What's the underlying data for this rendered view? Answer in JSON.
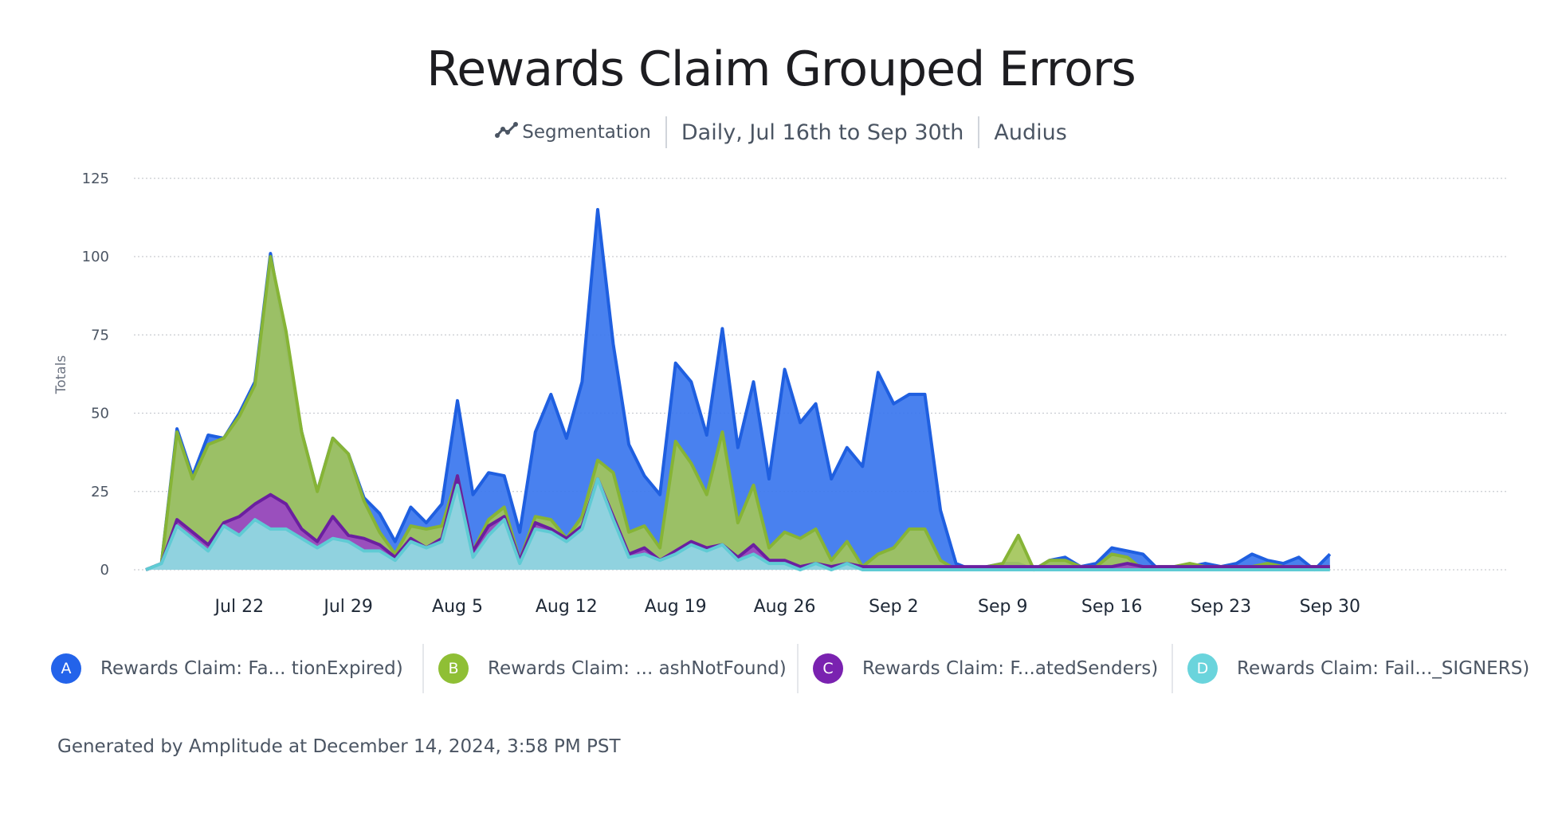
{
  "header": {
    "title": "Rewards Claim Grouped Errors",
    "segmentation_label": "Segmentation",
    "date_range": "Daily, Jul 16th to Sep 30th",
    "project": "Audius"
  },
  "footer": {
    "text": "Generated by Amplitude at December 14, 2024, 3:58 PM PST"
  },
  "chart_data": {
    "type": "area",
    "stacked": true,
    "title": "Rewards Claim Grouped Errors",
    "ylabel": "Totals",
    "xlabel": "",
    "ylim": [
      0,
      125
    ],
    "yticks": [
      0,
      25,
      50,
      75,
      100,
      125
    ],
    "grid": true,
    "start_date": "Jul 16",
    "x_ticks": [
      {
        "day": 6,
        "label": "Jul 22"
      },
      {
        "day": 13,
        "label": "Jul 29"
      },
      {
        "day": 20,
        "label": "Aug 5"
      },
      {
        "day": 27,
        "label": "Aug 12"
      },
      {
        "day": 34,
        "label": "Aug 19"
      },
      {
        "day": 41,
        "label": "Aug 26"
      },
      {
        "day": 48,
        "label": "Sep 2"
      },
      {
        "day": 55,
        "label": "Sep 9"
      },
      {
        "day": 62,
        "label": "Sep 16"
      },
      {
        "day": 69,
        "label": "Sep 23"
      },
      {
        "day": 76,
        "label": "Sep 30"
      }
    ],
    "cumulative_totals": {
      "D": [
        0,
        2,
        14,
        10,
        6,
        14,
        11,
        16,
        13,
        13,
        10,
        7,
        10,
        9,
        6,
        6,
        3,
        9,
        7,
        9,
        27,
        4,
        11,
        16,
        2,
        13,
        12,
        9,
        13,
        29,
        16,
        4,
        5,
        3,
        5,
        8,
        6,
        8,
        3,
        5,
        2,
        2,
        0,
        2,
        0,
        2,
        0,
        0,
        0,
        0,
        0,
        0,
        0,
        0,
        0,
        0,
        0,
        0,
        0,
        0,
        0,
        0,
        0,
        0,
        0,
        0,
        0,
        0,
        0,
        0,
        0,
        0,
        0,
        0,
        0,
        0,
        0
      ],
      "C": [
        0,
        2,
        16,
        12,
        8,
        15,
        17,
        21,
        24,
        21,
        13,
        9,
        17,
        11,
        10,
        8,
        4,
        10,
        7,
        10,
        30,
        6,
        14,
        17,
        3,
        15,
        13,
        10,
        14,
        29,
        17,
        5,
        7,
        3,
        6,
        9,
        7,
        8,
        4,
        8,
        3,
        3,
        1,
        2,
        1,
        2,
        1,
        1,
        1,
        1,
        1,
        1,
        1,
        1,
        1,
        1,
        1,
        1,
        1,
        1,
        1,
        1,
        1,
        2,
        1,
        1,
        1,
        1,
        1,
        1,
        1,
        1,
        1,
        1,
        1,
        1,
        1
      ],
      "B": [
        0,
        2,
        44,
        29,
        40,
        42,
        49,
        59,
        100,
        76,
        44,
        25,
        42,
        37,
        22,
        12,
        5,
        14,
        13,
        14,
        30,
        6,
        16,
        20,
        3,
        17,
        16,
        10,
        17,
        35,
        31,
        12,
        14,
        7,
        41,
        34,
        24,
        44,
        15,
        27,
        7,
        12,
        10,
        13,
        3,
        9,
        1,
        5,
        7,
        13,
        13,
        3,
        0,
        0,
        1,
        2,
        11,
        0,
        3,
        3,
        1,
        1,
        5,
        4,
        0,
        1,
        1,
        2,
        1,
        1,
        1,
        1,
        2,
        1,
        1,
        1,
        1
      ],
      "A": [
        0,
        2,
        45,
        30,
        43,
        42,
        50,
        60,
        101,
        72,
        44,
        25,
        42,
        37,
        23,
        18,
        9,
        20,
        15,
        21,
        54,
        24,
        31,
        30,
        12,
        44,
        56,
        42,
        60,
        115,
        72,
        40,
        30,
        24,
        66,
        60,
        43,
        77,
        39,
        60,
        29,
        64,
        47,
        53,
        29,
        39,
        33,
        63,
        53,
        56,
        56,
        19,
        2,
        0,
        1,
        2,
        2,
        0,
        3,
        4,
        1,
        2,
        7,
        6,
        5,
        0,
        1,
        1,
        2,
        1,
        2,
        5,
        3,
        2,
        4,
        0,
        5
      ]
    },
    "series": [
      {
        "key": "A",
        "name": "Rewards Claim: Fa... tionExpired)",
        "color": "#3a76ee",
        "line": "#1f5fe0"
      },
      {
        "key": "B",
        "name": "Rewards Claim: ... ashNotFound)",
        "color": "#a3c55a",
        "line": "#86b436"
      },
      {
        "key": "C",
        "name": "Rewards Claim: F...atedSenders)",
        "color": "#9a45c4",
        "line": "#6b1fa0"
      },
      {
        "key": "D",
        "name": "Rewards Claim: Fail..._SIGNERS)",
        "color": "#8fdde2",
        "line": "#5fcbd4"
      }
    ],
    "legend_position": "bottom"
  },
  "colors": {
    "badge_A": "#2363ea",
    "badge_B": "#8fbf35",
    "badge_C": "#7a22b0",
    "badge_D": "#6ad4dc",
    "grid": "#c9ccd1",
    "axis_text": "#4b5563"
  },
  "icons": {
    "segmentation": "line-chart-icon"
  }
}
